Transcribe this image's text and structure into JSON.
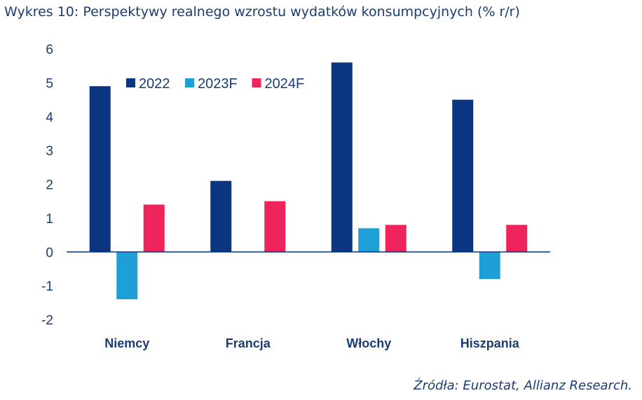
{
  "chart_data": {
    "type": "bar",
    "title": "Wykres 10: Perspektywy realnego wzrostu wydatków konsumpcyjnych (% r/r)",
    "categories": [
      "Niemcy",
      "Francja",
      "Włochy",
      "Hiszpania"
    ],
    "series": [
      {
        "name": "2022",
        "color": "#0b3481",
        "values": [
          4.9,
          2.1,
          5.6,
          4.5
        ]
      },
      {
        "name": "2023F",
        "color": "#1e9fd6",
        "values": [
          -1.4,
          0,
          0.7,
          -0.8
        ]
      },
      {
        "name": "2024F",
        "color": "#f0245d",
        "values": [
          1.4,
          1.5,
          0.8,
          0.8
        ]
      }
    ],
    "yticks": [
      "6",
      "5",
      "4",
      "3",
      "2",
      "1",
      "0",
      "-1",
      "-2"
    ],
    "ylim": [
      -2,
      6
    ],
    "xlabel": "",
    "ylabel": "",
    "legend": "top-left",
    "grid": false,
    "source": "Źródła: Eurostat, Allianz Research."
  }
}
